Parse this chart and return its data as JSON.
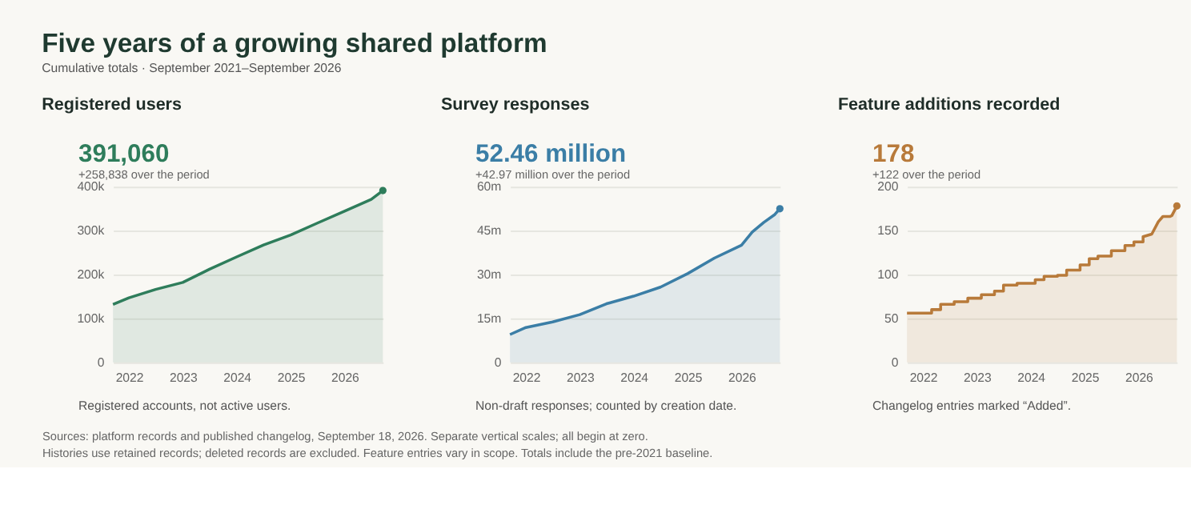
{
  "chart_data": [
    {
      "type": "other",
      "title": "Five years of a growing shared platform",
      "subtitle": "Cumulative totals · September 2021–September 2026",
      "annotations": [
        "Sources: platform records and published changelog, September 18, 2026. Separate vertical scales; all begin at zero.",
        "Histories use retained records; deleted records are excluded. Feature entries vary in scope. Totals include the pre-2021 baseline."
      ]
    },
    {
      "type": "area",
      "title": "Registered users",
      "annotations": [
        "391,060",
        "+258,838 over the period",
        "Registered accounts, not active users."
      ],
      "x": [
        "2021-09-15",
        "2022-01-01",
        "2022-07-01",
        "2023-01-01",
        "2023-07-01",
        "2024-01-01",
        "2024-07-01",
        "2025-01-01",
        "2025-07-01",
        "2026-01-01",
        "2026-07-01",
        "2026-09-18"
      ],
      "series": [
        {
          "color": "#2e7d5b",
          "values": [
            132000,
            147000,
            166000,
            182000,
            212000,
            240000,
            267000,
            290000,
            317000,
            344000,
            371000,
            391060
          ]
        }
      ],
      "xlim": [
        "2021-09-15",
        "2026-09-18"
      ],
      "xticks": [
        "2022",
        "2023",
        "2024",
        "2025",
        "2026"
      ],
      "ylim": [
        0,
        400000
      ],
      "yticks": [
        0,
        {
          "value": 100000,
          "label": "100k"
        },
        {
          "value": 200000,
          "label": "200k"
        },
        {
          "value": 300000,
          "label": "300k"
        },
        {
          "value": 400000,
          "label": "400k"
        }
      ],
      "grid": "y"
    },
    {
      "type": "area",
      "title": "Survey responses",
      "annotations": [
        "52.46 million",
        "+42.97 million over the period",
        "Non-draft responses; counted by creation date."
      ],
      "x": [
        "2021-09-15",
        "2022-01-01",
        "2022-07-01",
        "2023-01-01",
        "2023-07-01",
        "2024-01-01",
        "2024-07-01",
        "2025-01-01",
        "2025-07-01",
        "2026-01-01",
        "2026-03-15",
        "2026-06-01",
        "2026-08-15",
        "2026-09-18"
      ],
      "series": [
        {
          "color": "#3b7ea6",
          "values": [
            9.5,
            11.9,
            13.8,
            16.3,
            20.0,
            22.6,
            25.7,
            30.3,
            35.6,
            40.0,
            44.5,
            47.8,
            50.5,
            52.46
          ]
        }
      ],
      "xlim": [
        "2021-09-15",
        "2026-09-18"
      ],
      "xticks": [
        "2022",
        "2023",
        "2024",
        "2025",
        "2026"
      ],
      "ylim": [
        0,
        60
      ],
      "yticks": [
        0,
        {
          "value": 15,
          "label": "15m"
        },
        {
          "value": 30,
          "label": "30m"
        },
        {
          "value": 45,
          "label": "45m"
        },
        {
          "value": 60,
          "label": "60m"
        }
      ],
      "grid": "y"
    },
    {
      "type": "area",
      "title": "Feature additions recorded",
      "annotations": [
        "178",
        "+122 over the period",
        "Changelog entries marked “Added”."
      ],
      "x": [
        "2021-09-15",
        "2022-03-01",
        "2022-03-01",
        "2022-05-01",
        "2022-05-01",
        "2022-08-01",
        "2022-08-01",
        "2022-11-01",
        "2022-11-01",
        "2023-02-01",
        "2023-02-01",
        "2023-05-01",
        "2023-05-01",
        "2023-07-01",
        "2023-07-01",
        "2023-10-01",
        "2023-10-01",
        "2024-02-01",
        "2024-02-01",
        "2024-04-01",
        "2024-04-01",
        "2024-07-01",
        "2024-07-01",
        "2024-09-01",
        "2024-09-01",
        "2024-12-01",
        "2024-12-01",
        "2025-02-01",
        "2025-02-01",
        "2025-04-01",
        "2025-04-01",
        "2025-07-01",
        "2025-07-01",
        "2025-10-01",
        "2025-10-01",
        "2025-12-01",
        "2025-12-01",
        "2026-02-01",
        "2026-02-01",
        "2026-04-01",
        "2026-05-15",
        "2026-06-15",
        "2026-08-01",
        "2026-08-15",
        "2026-09-18"
      ],
      "series": [
        {
          "color": "#b87a3a",
          "values": [
            56,
            56,
            60,
            60,
            66,
            66,
            69,
            69,
            73,
            73,
            77,
            77,
            81,
            81,
            88,
            88,
            90,
            90,
            94,
            94,
            98,
            98,
            99,
            99,
            105,
            105,
            111,
            111,
            118,
            118,
            121,
            121,
            127,
            127,
            133,
            133,
            137,
            137,
            143,
            146,
            160,
            166,
            166,
            167,
            178
          ]
        }
      ],
      "xlim": [
        "2021-09-15",
        "2026-09-18"
      ],
      "xticks": [
        "2022",
        "2023",
        "2024",
        "2025",
        "2026"
      ],
      "ylim": [
        0,
        200
      ],
      "yticks": [
        0,
        50,
        100,
        150,
        200
      ],
      "grid": "y"
    }
  ]
}
